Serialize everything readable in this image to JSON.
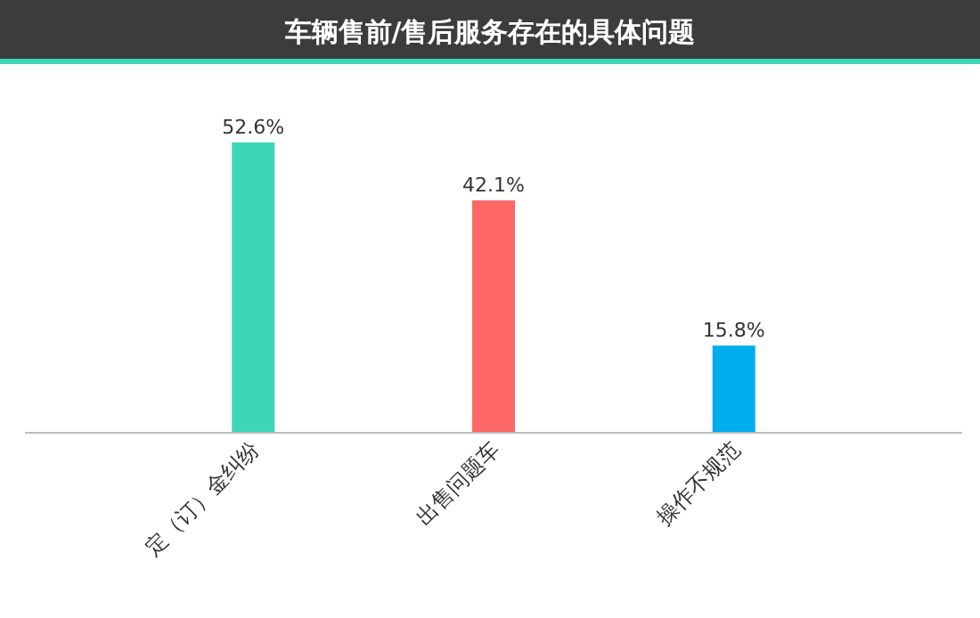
{
  "chart_data": {
    "type": "bar",
    "title": "车辆售前/售后服务存在的具体问题",
    "categories": [
      "定（订）金纠纷",
      "出售问题车",
      "操作不规范"
    ],
    "values": [
      52.6,
      42.1,
      15.8
    ],
    "colors": [
      "#3dd6b7",
      "#ff6666",
      "#00aeef"
    ],
    "value_labels": [
      "52.6%",
      "42.1%",
      "15.8%"
    ]
  }
}
